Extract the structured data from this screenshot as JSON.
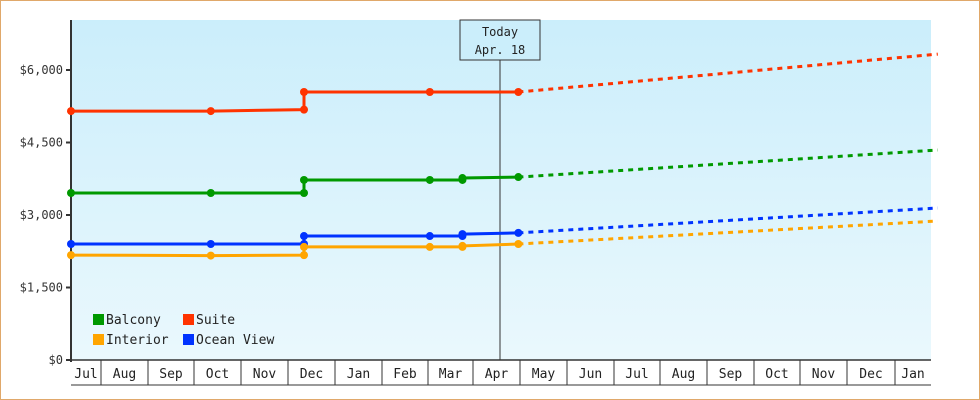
{
  "chart_data": {
    "type": "line",
    "title": "",
    "xlabel": "",
    "ylabel": "",
    "ylim": [
      0,
      7000
    ],
    "y_ticks": [
      "$0",
      "$1,500",
      "$3,000",
      "$4,500",
      "$6,000"
    ],
    "y_tick_values": [
      0,
      1500,
      3000,
      4500,
      6000
    ],
    "x_ticks": [
      "Jul",
      "Aug",
      "Sep",
      "Oct",
      "Nov",
      "Dec",
      "Jan",
      "Feb",
      "Mar",
      "Apr",
      "May",
      "Jun",
      "Jul",
      "Aug",
      "Sep",
      "Oct",
      "Nov",
      "Dec",
      "Jan"
    ],
    "grid": false,
    "legend_position": "lower-left inside",
    "today_marker": {
      "line1": "Today",
      "line2": "Apr. 18",
      "x_month_index": 9.6
    },
    "colors": {
      "Balcony": "#009900",
      "Suite": "#ff3300",
      "Interior": "#ffa500",
      "Ocean View": "#0033ff",
      "background_top": "#cbeefb",
      "background_bottom": "#eaf8fd",
      "frame": "#e0a86a"
    },
    "series": [
      {
        "name": "Suite",
        "historical": [
          [
            0.0,
            5150
          ],
          [
            3.0,
            5150
          ],
          [
            5.0,
            5180
          ],
          [
            5.0,
            5545
          ],
          [
            7.7,
            5545
          ],
          [
            9.6,
            5545
          ]
        ],
        "projected": [
          [
            9.6,
            5545
          ],
          [
            18.6,
            6330
          ]
        ]
      },
      {
        "name": "Balcony",
        "historical": [
          [
            0.0,
            3455
          ],
          [
            3.0,
            3455
          ],
          [
            5.0,
            3455
          ],
          [
            5.0,
            3725
          ],
          [
            7.7,
            3725
          ],
          [
            8.4,
            3725
          ],
          [
            8.4,
            3765
          ],
          [
            9.6,
            3785
          ]
        ],
        "projected": [
          [
            9.6,
            3785
          ],
          [
            18.6,
            4345
          ]
        ]
      },
      {
        "name": "Ocean View",
        "historical": [
          [
            0.0,
            2400
          ],
          [
            3.0,
            2400
          ],
          [
            5.0,
            2400
          ],
          [
            5.0,
            2565
          ],
          [
            7.7,
            2565
          ],
          [
            8.4,
            2565
          ],
          [
            8.4,
            2605
          ],
          [
            9.6,
            2630
          ]
        ],
        "projected": [
          [
            9.6,
            2630
          ],
          [
            18.6,
            3145
          ]
        ]
      },
      {
        "name": "Interior",
        "historical": [
          [
            0.0,
            2170
          ],
          [
            3.0,
            2160
          ],
          [
            5.0,
            2170
          ],
          [
            5.0,
            2340
          ],
          [
            7.7,
            2340
          ],
          [
            8.4,
            2340
          ],
          [
            8.4,
            2360
          ],
          [
            9.6,
            2400
          ]
        ],
        "projected": [
          [
            9.6,
            2400
          ],
          [
            18.6,
            2875
          ]
        ]
      }
    ]
  },
  "legend": {
    "items": [
      {
        "label": "Balcony",
        "color": "#009900"
      },
      {
        "label": "Suite",
        "color": "#ff3300"
      },
      {
        "label": "Interior",
        "color": "#ffa500"
      },
      {
        "label": "Ocean View",
        "color": "#0033ff"
      }
    ]
  },
  "today": {
    "line1": "Today",
    "line2": "Apr. 18"
  }
}
